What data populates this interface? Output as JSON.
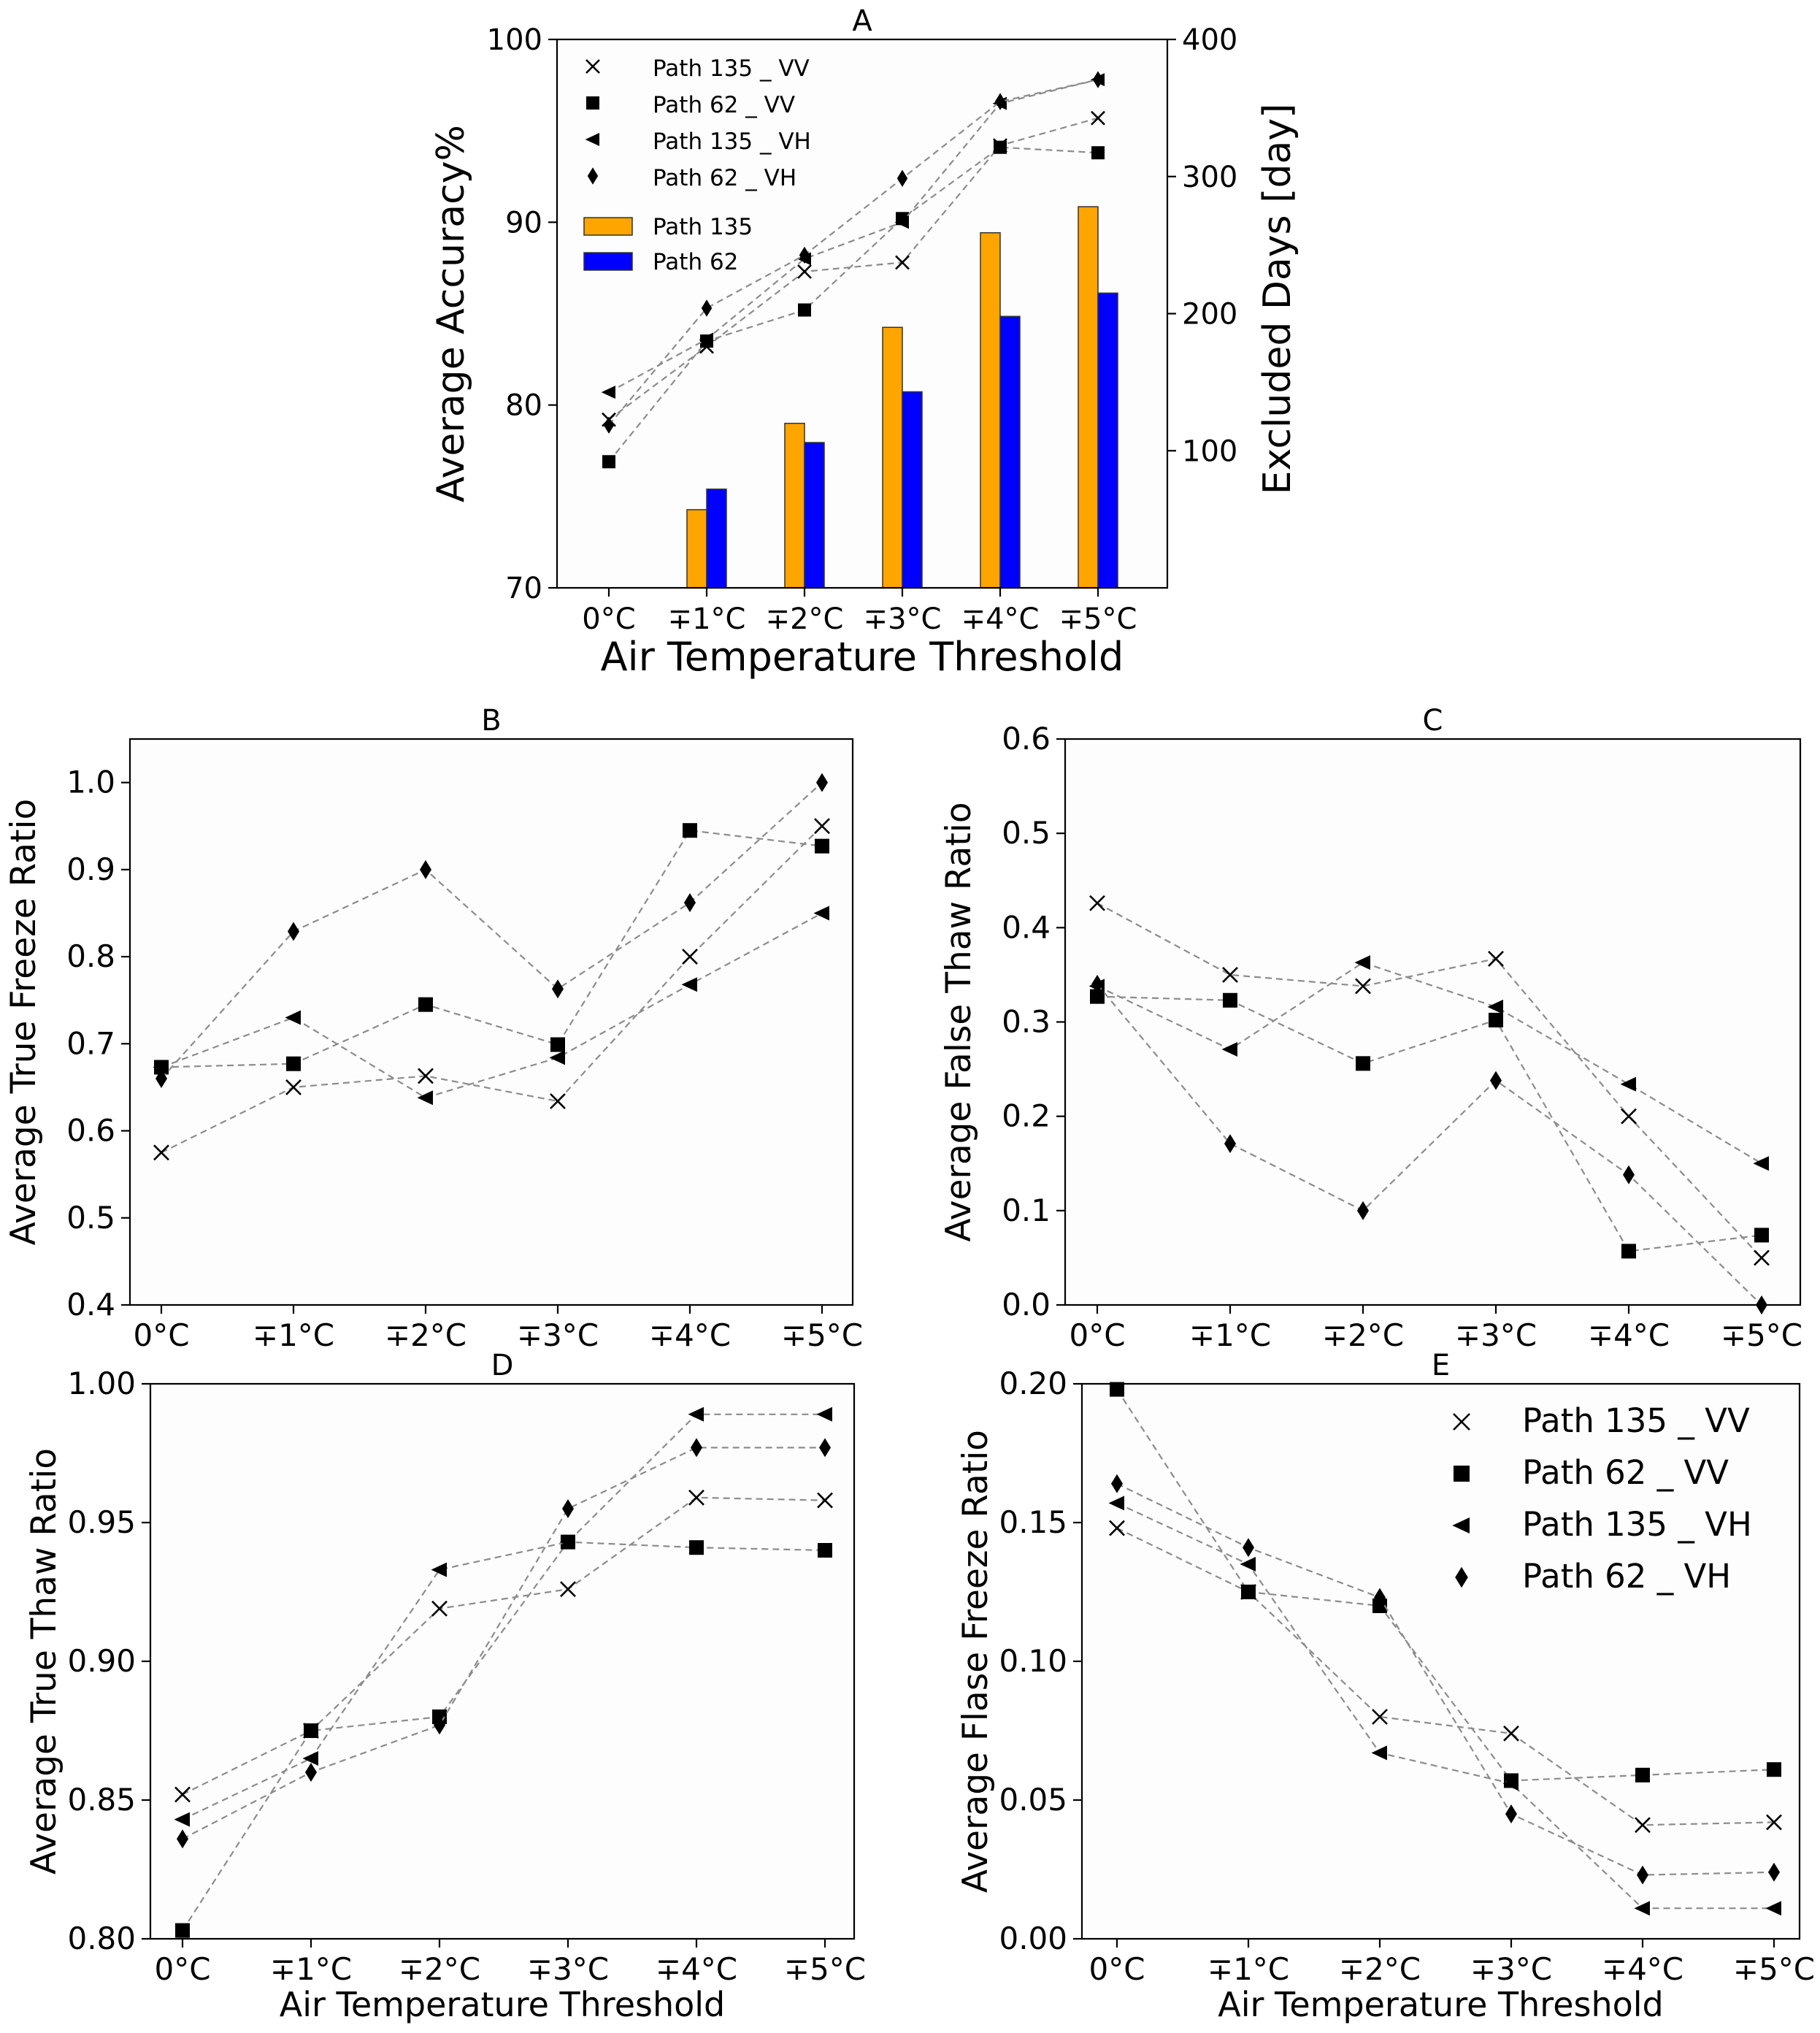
{
  "chart_data": [
    {
      "id": "A",
      "type": "bar+line",
      "title": "A",
      "xlabel": "Air Temperature Threshold",
      "ylabel": "Average Accuracy%",
      "y2label": "Excluded Days [day]",
      "categories": [
        "0°C",
        "∓1°C",
        "∓2°C",
        "∓3°C",
        "∓4°C",
        "∓5°C"
      ],
      "ylim": [
        70,
        100
      ],
      "yticks": [
        70,
        80,
        90,
        100
      ],
      "y2lim": [
        0,
        400
      ],
      "y2ticks": [
        100,
        200,
        300,
        400
      ],
      "series": [
        {
          "name": "Path 135 _ VV",
          "marker": "x",
          "values": [
            79.2,
            83.2,
            87.3,
            87.8,
            94.2,
            95.7
          ]
        },
        {
          "name": "Path 62 _ VV",
          "marker": "square",
          "values": [
            76.9,
            83.5,
            85.2,
            90.2,
            94.1,
            93.8
          ]
        },
        {
          "name": "Path 135 _ VH",
          "marker": "triangle-left",
          "values": [
            80.7,
            83.6,
            88.0,
            90.0,
            96.5,
            97.8
          ]
        },
        {
          "name": "Path 62 _ VH",
          "marker": "diamond",
          "values": [
            78.9,
            85.3,
            88.2,
            92.4,
            96.6,
            97.8
          ]
        }
      ],
      "bars": [
        {
          "name": "Path 135",
          "color": "#ffa500",
          "values": [
            0,
            57,
            120,
            190,
            259,
            278
          ]
        },
        {
          "name": "Path 62",
          "color": "#0000ff",
          "values": [
            0,
            72,
            106,
            143,
            198,
            215
          ]
        }
      ]
    },
    {
      "id": "B",
      "type": "line",
      "title": "B",
      "xlabel": "",
      "ylabel": "Average True Freeze Ratio",
      "categories": [
        "0°C",
        "∓1°C",
        "∓2°C",
        "∓3°C",
        "∓4°C",
        "∓5°C"
      ],
      "ylim": [
        0.4,
        1.05
      ],
      "yticks": [
        "0.4",
        "0.5",
        "0.6",
        "0.7",
        "0.8",
        "0.9",
        "1.0"
      ],
      "series": [
        {
          "name": "Path 135 _ VV",
          "marker": "x",
          "values": [
            0.575,
            0.65,
            0.663,
            0.634,
            0.8,
            0.95
          ]
        },
        {
          "name": "Path 62 _ VV",
          "marker": "square",
          "values": [
            0.673,
            0.677,
            0.745,
            0.699,
            0.945,
            0.927
          ]
        },
        {
          "name": "Path 135 _ VH",
          "marker": "triangle-left",
          "values": [
            0.673,
            0.73,
            0.638,
            0.684,
            0.768,
            0.85
          ]
        },
        {
          "name": "Path 62 _ VH",
          "marker": "diamond",
          "values": [
            0.66,
            0.829,
            0.9,
            0.763,
            0.862,
            1.0
          ]
        }
      ]
    },
    {
      "id": "C",
      "type": "line",
      "title": "C",
      "xlabel": "",
      "ylabel": "Average False Thaw Ratio",
      "categories": [
        "0°C",
        "∓1°C",
        "∓2°C",
        "∓3°C",
        "∓4°C",
        "∓5°C"
      ],
      "ylim": [
        0.0,
        0.6
      ],
      "yticks": [
        "0.0",
        "0.1",
        "0.2",
        "0.3",
        "0.4",
        "0.5",
        "0.6"
      ],
      "series": [
        {
          "name": "Path 135 _ VV",
          "marker": "x",
          "values": [
            0.426,
            0.35,
            0.338,
            0.367,
            0.2,
            0.05
          ]
        },
        {
          "name": "Path 62 _ VV",
          "marker": "square",
          "values": [
            0.327,
            0.323,
            0.256,
            0.302,
            0.057,
            0.074
          ]
        },
        {
          "name": "Path 135 _ VH",
          "marker": "triangle-left",
          "values": [
            0.338,
            0.271,
            0.363,
            0.316,
            0.234,
            0.15
          ]
        },
        {
          "name": "Path 62 _ VH",
          "marker": "diamond",
          "values": [
            0.34,
            0.171,
            0.1,
            0.238,
            0.138,
            0.0
          ]
        }
      ]
    },
    {
      "id": "D",
      "type": "line",
      "title": "D",
      "xlabel": "Air Temperature Threshold",
      "ylabel": "Average True Thaw Ratio",
      "categories": [
        "0°C",
        "∓1°C",
        "∓2°C",
        "∓3°C",
        "∓4°C",
        "∓5°C"
      ],
      "ylim": [
        0.8,
        1.0
      ],
      "yticks": [
        "0.80",
        "0.85",
        "0.90",
        "0.95",
        "1.00"
      ],
      "series": [
        {
          "name": "Path 135 _ VV",
          "marker": "x",
          "values": [
            0.852,
            0.875,
            0.919,
            0.926,
            0.959,
            0.958
          ]
        },
        {
          "name": "Path 62 _ VV",
          "marker": "square",
          "values": [
            0.803,
            0.875,
            0.88,
            0.943,
            0.941,
            0.94
          ]
        },
        {
          "name": "Path 135 _ VH",
          "marker": "triangle-left",
          "values": [
            0.843,
            0.865,
            0.933,
            0.943,
            0.989,
            0.989
          ]
        },
        {
          "name": "Path 62 _ VH",
          "marker": "diamond",
          "values": [
            0.836,
            0.86,
            0.877,
            0.955,
            0.977,
            0.977
          ]
        }
      ]
    },
    {
      "id": "E",
      "type": "line",
      "title": "E",
      "xlabel": "Air Temperature Threshold",
      "ylabel": "Average Flase Freeze Ratio",
      "categories": [
        "0°C",
        "∓1°C",
        "∓2°C",
        "∓3°C",
        "∓4°C",
        "∓5°C"
      ],
      "ylim": [
        0.0,
        0.2
      ],
      "yticks": [
        "0.00",
        "0.05",
        "0.10",
        "0.15",
        "0.20"
      ],
      "legend": "top-right",
      "series": [
        {
          "name": "Path 135 _ VV",
          "marker": "x",
          "values": [
            0.148,
            0.125,
            0.08,
            0.074,
            0.041,
            0.042
          ]
        },
        {
          "name": "Path 62 _ VV",
          "marker": "square",
          "values": [
            0.198,
            0.125,
            0.12,
            0.057,
            0.059,
            0.061
          ]
        },
        {
          "name": "Path 135 _ VH",
          "marker": "triangle-left",
          "values": [
            0.157,
            0.135,
            0.067,
            0.056,
            0.011,
            0.011
          ]
        },
        {
          "name": "Path 62 _ VH",
          "marker": "diamond",
          "values": [
            0.164,
            0.141,
            0.123,
            0.045,
            0.023,
            0.024
          ]
        }
      ]
    }
  ]
}
